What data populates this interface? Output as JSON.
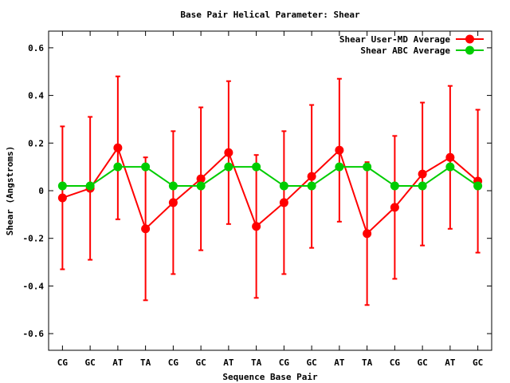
{
  "chart_data": {
    "type": "line",
    "title": "Base Pair Helical Parameter: Shear",
    "xlabel": "Sequence Base Pair",
    "ylabel": "Shear (Angstroms)",
    "categories": [
      "CG",
      "GC",
      "AT",
      "TA",
      "CG",
      "GC",
      "AT",
      "TA",
      "CG",
      "GC",
      "AT",
      "TA",
      "CG",
      "GC",
      "AT",
      "GC"
    ],
    "ylim": [
      -0.67,
      0.67
    ],
    "yticks": [
      -0.6,
      -0.4,
      -0.2,
      0,
      0.2,
      0.4,
      0.6
    ],
    "ytick_labels": [
      "-0.6",
      "-0.4",
      "-0.2",
      "0",
      "0.2",
      "0.4",
      "0.6"
    ],
    "legend_position": "top-right",
    "grid": false,
    "series": [
      {
        "name": "Shear User-MD Average",
        "color": "#ff0000",
        "values": [
          -0.03,
          0.01,
          0.18,
          -0.16,
          -0.05,
          0.05,
          0.16,
          -0.15,
          -0.05,
          0.06,
          0.17,
          -0.18,
          -0.07,
          0.07,
          0.14,
          0.04
        ],
        "error_low": [
          -0.33,
          -0.29,
          -0.12,
          -0.46,
          -0.35,
          -0.25,
          -0.14,
          -0.45,
          -0.35,
          -0.24,
          -0.13,
          -0.48,
          -0.37,
          -0.23,
          -0.16,
          -0.26
        ],
        "error_high": [
          0.27,
          0.31,
          0.48,
          0.14,
          0.25,
          0.35,
          0.46,
          0.15,
          0.25,
          0.36,
          0.47,
          0.12,
          0.23,
          0.37,
          0.44,
          0.34
        ]
      },
      {
        "name": "Shear ABC Average",
        "color": "#00cc00",
        "values": [
          0.02,
          0.02,
          0.1,
          0.1,
          0.02,
          0.02,
          0.1,
          0.1,
          0.02,
          0.02,
          0.1,
          0.1,
          0.02,
          0.02,
          0.1,
          0.02
        ]
      }
    ]
  }
}
